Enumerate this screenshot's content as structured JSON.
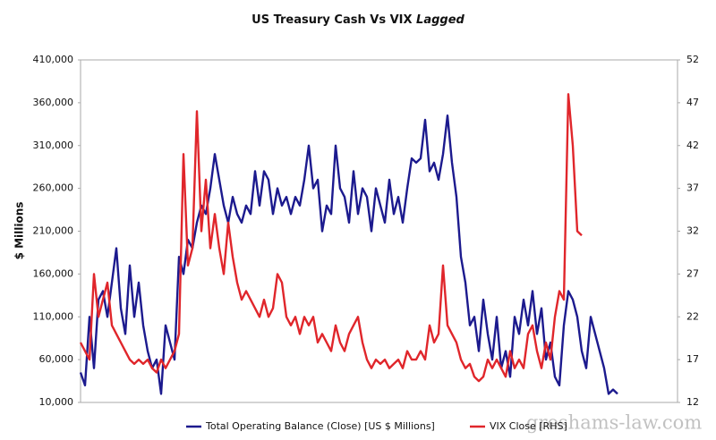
{
  "chart_data": {
    "type": "line",
    "title": "US Treasury Cash Vs VIX",
    "title_italic": "Lagged",
    "ylabel": "$ Millions",
    "watermark": "greshams-law.com",
    "ylim": [
      10000,
      410000
    ],
    "yticks": [
      {
        "value": 10000,
        "label": "10,000"
      },
      {
        "value": 60000,
        "label": "60,000"
      },
      {
        "value": 110000,
        "label": "110,000"
      },
      {
        "value": 160000,
        "label": "160,000"
      },
      {
        "value": 210000,
        "label": "210,000"
      },
      {
        "value": 260000,
        "label": "260,000"
      },
      {
        "value": 310000,
        "label": "310,000"
      },
      {
        "value": 360000,
        "label": "360,000"
      },
      {
        "value": 410000,
        "label": "410,000"
      }
    ],
    "y2lim": [
      12,
      52
    ],
    "y2ticks": [
      12,
      17,
      22,
      27,
      32,
      37,
      42,
      47,
      52
    ],
    "legend": "bottom",
    "series": [
      {
        "name": "Total Operating Balance (Close) [US $ Millions]",
        "color": "#1c1a8e",
        "values": [
          45000,
          30000,
          110000,
          50000,
          130000,
          140000,
          110000,
          150000,
          190000,
          120000,
          90000,
          170000,
          110000,
          150000,
          100000,
          70000,
          50000,
          60000,
          20000,
          100000,
          80000,
          60000,
          180000,
          160000,
          200000,
          190000,
          220000,
          240000,
          230000,
          260000,
          300000,
          270000,
          240000,
          220000,
          250000,
          230000,
          220000,
          240000,
          230000,
          280000,
          240000,
          280000,
          270000,
          230000,
          260000,
          240000,
          250000,
          230000,
          250000,
          240000,
          270000,
          310000,
          260000,
          270000,
          210000,
          240000,
          230000,
          310000,
          260000,
          250000,
          220000,
          280000,
          230000,
          260000,
          250000,
          210000,
          260000,
          240000,
          220000,
          270000,
          230000,
          250000,
          220000,
          260000,
          295000,
          290000,
          295000,
          340000,
          280000,
          290000,
          270000,
          300000,
          345000,
          290000,
          250000,
          180000,
          150000,
          100000,
          110000,
          70000,
          130000,
          90000,
          60000,
          110000,
          50000,
          70000,
          40000,
          110000,
          90000,
          130000,
          100000,
          140000,
          90000,
          120000,
          60000,
          80000,
          40000,
          30000,
          100000,
          140000,
          130000,
          110000,
          70000,
          50000,
          110000,
          90000,
          70000,
          50000,
          20000,
          25000,
          20000
        ]
      },
      {
        "name": "VIX Close [RHS]",
        "color": "#e0262b",
        "axis": "y2",
        "values": [
          19,
          18,
          17,
          27,
          22,
          24,
          26,
          21,
          20,
          19,
          18,
          17,
          16.5,
          17,
          16.5,
          17,
          16,
          15.5,
          17,
          16,
          17,
          18,
          20,
          41,
          28,
          30,
          46,
          32,
          38,
          30,
          34,
          30,
          27,
          33,
          29,
          26,
          24,
          25,
          24,
          23,
          22,
          24,
          22,
          23,
          27,
          26,
          22,
          21,
          22,
          20,
          22,
          21,
          22,
          19,
          20,
          19,
          18,
          21,
          19,
          18,
          20,
          21,
          22,
          19,
          17,
          16,
          17,
          16.5,
          17,
          16,
          16.5,
          17,
          16,
          18,
          17,
          17,
          18,
          17,
          21,
          19,
          20,
          28,
          21,
          20,
          19,
          17,
          16,
          16.5,
          15,
          14.5,
          15,
          17,
          16,
          17,
          16,
          15,
          18,
          16,
          17,
          16,
          20,
          21,
          18,
          16,
          19,
          17,
          22,
          25,
          24,
          48,
          42,
          32,
          31.5,
          null,
          null,
          null,
          null,
          null,
          null,
          null,
          null
        ]
      }
    ]
  }
}
